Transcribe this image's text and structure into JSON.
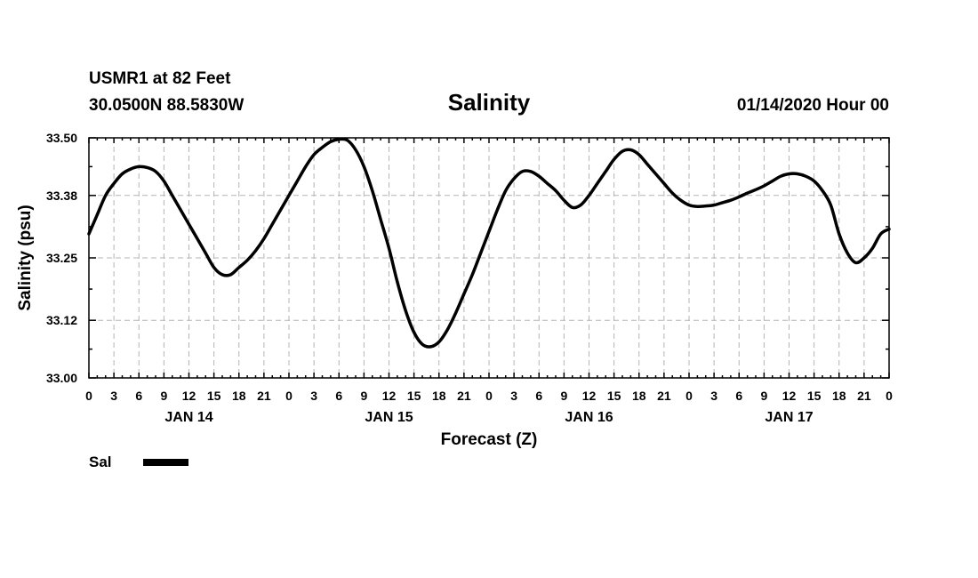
{
  "header": {
    "station": "USMR1 at 82 Feet",
    "coords": "30.0500N 88.5830W",
    "title": "Salinity",
    "datetime": "01/14/2020 Hour 00"
  },
  "legend": {
    "label": "Sal",
    "color": "#000000"
  },
  "chart_data": {
    "type": "line",
    "title": "Salinity",
    "xlabel": "Forecast (Z)",
    "ylabel": "Salinity (psu)",
    "ylim": [
      33.0,
      33.5
    ],
    "yticks": [
      33.0,
      33.12,
      33.25,
      33.38,
      33.5
    ],
    "ytick_labels": [
      "33.00",
      "33.12",
      "33.25",
      "33.38",
      "33.50"
    ],
    "xlim": [
      0,
      96
    ],
    "xtick_hours": [
      0,
      3,
      6,
      9,
      12,
      15,
      18,
      21,
      24,
      27,
      30,
      33,
      36,
      39,
      42,
      45,
      48,
      51,
      54,
      57,
      60,
      63,
      66,
      69,
      72,
      75,
      78,
      81,
      84,
      87,
      90,
      93,
      96
    ],
    "xtick_labels": [
      "0",
      "3",
      "6",
      "9",
      "12",
      "15",
      "18",
      "21",
      "0",
      "3",
      "6",
      "9",
      "12",
      "15",
      "18",
      "21",
      "0",
      "3",
      "6",
      "9",
      "12",
      "15",
      "18",
      "21",
      "0",
      "3",
      "6",
      "9",
      "12",
      "15",
      "18",
      "21",
      "0"
    ],
    "day_labels": [
      {
        "label": "JAN 14",
        "hour": 12
      },
      {
        "label": "JAN 15",
        "hour": 36
      },
      {
        "label": "JAN 16",
        "hour": 60
      },
      {
        "label": "JAN 17",
        "hour": 84
      }
    ],
    "series": [
      {
        "name": "Sal",
        "color": "#000000",
        "x": [
          0,
          1,
          2,
          3,
          4,
          5,
          6,
          7,
          8,
          9,
          10,
          11,
          12,
          13,
          14,
          15,
          16,
          17,
          18,
          19,
          20,
          21,
          22,
          23,
          24,
          25,
          26,
          27,
          28,
          29,
          30,
          31,
          32,
          33,
          34,
          35,
          36,
          37,
          38,
          39,
          40,
          41,
          42,
          43,
          44,
          45,
          46,
          47,
          48,
          49,
          50,
          51,
          52,
          53,
          54,
          55,
          56,
          57,
          58,
          59,
          60,
          61,
          62,
          63,
          64,
          65,
          66,
          67,
          68,
          69,
          70,
          71,
          72,
          73,
          74,
          75,
          76,
          77,
          78,
          79,
          80,
          81,
          82,
          83,
          84,
          85,
          86,
          87,
          88,
          89,
          90,
          91,
          92,
          93,
          94,
          95,
          96
        ],
        "y": [
          33.3,
          33.34,
          33.38,
          33.405,
          33.425,
          33.435,
          33.44,
          33.438,
          33.43,
          33.41,
          33.38,
          33.35,
          33.32,
          33.29,
          33.26,
          33.23,
          33.215,
          33.215,
          33.23,
          33.245,
          33.265,
          33.29,
          33.32,
          33.35,
          33.38,
          33.41,
          33.44,
          33.465,
          33.48,
          33.492,
          33.497,
          33.495,
          33.475,
          33.44,
          33.39,
          33.33,
          33.27,
          33.2,
          33.14,
          33.095,
          33.07,
          33.065,
          33.075,
          33.1,
          33.135,
          33.175,
          33.215,
          33.26,
          33.305,
          33.35,
          33.39,
          33.415,
          33.43,
          33.43,
          33.42,
          33.405,
          33.39,
          33.37,
          33.355,
          33.36,
          33.38,
          33.405,
          33.43,
          33.455,
          33.472,
          33.475,
          33.465,
          33.445,
          33.425,
          33.405,
          33.385,
          33.37,
          33.36,
          33.357,
          33.358,
          33.36,
          33.365,
          33.37,
          33.377,
          33.385,
          33.392,
          33.4,
          33.41,
          33.42,
          33.425,
          33.425,
          33.42,
          33.41,
          33.39,
          33.36,
          33.3,
          33.26,
          33.24,
          33.25,
          33.27,
          33.3,
          33.31
        ]
      }
    ]
  }
}
